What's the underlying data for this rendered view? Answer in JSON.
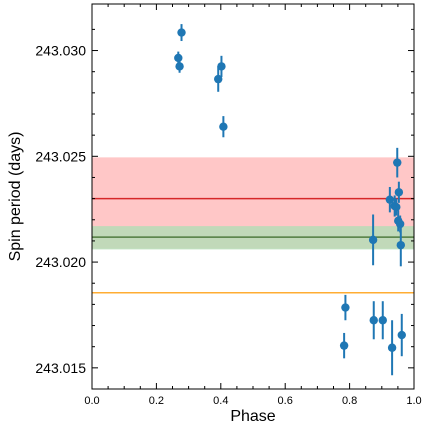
{
  "chart_data": {
    "type": "scatter",
    "title": "",
    "xlabel": "Phase",
    "ylabel": "Spin period (days)",
    "xlim": [
      0.0,
      1.0
    ],
    "ylim": [
      243.014,
      243.0322
    ],
    "grid": false,
    "x_ticks": [
      0.0,
      0.2,
      0.4,
      0.6,
      0.8,
      1.0
    ],
    "x_tick_labels": [
      "0.0",
      "0.2",
      "0.4",
      "0.6",
      "0.8",
      "1.0"
    ],
    "y_ticks": [
      243.015,
      243.02,
      243.025,
      243.03
    ],
    "y_tick_labels": [
      "243.015",
      "243.020",
      "243.025",
      "243.030"
    ],
    "bands": [
      {
        "ymin": 243.02065,
        "ymax": 243.02495,
        "color": "#ffbdbd"
      },
      {
        "ymin": 243.0206,
        "ymax": 243.0217,
        "color": "#b6dcb6"
      }
    ],
    "hlines": [
      {
        "y": 243.023,
        "color": "#d62728"
      },
      {
        "y": 243.02118,
        "color": "#4f7b3f"
      },
      {
        "y": 243.01855,
        "color": "#ffad33"
      }
    ],
    "marker_color": "#1f77b4",
    "series": [
      {
        "points": [
          {
            "x": 0.268,
            "y": 243.02965,
            "err": 0.0003
          },
          {
            "x": 0.272,
            "y": 243.02925,
            "err": 0.0003
          },
          {
            "x": 0.278,
            "y": 243.03085,
            "err": 0.0004
          },
          {
            "x": 0.392,
            "y": 243.02865,
            "err": 0.0006
          },
          {
            "x": 0.402,
            "y": 243.02925,
            "err": 0.0005
          },
          {
            "x": 0.408,
            "y": 243.0264,
            "err": 0.0005
          },
          {
            "x": 0.783,
            "y": 243.01605,
            "err": 0.0006
          },
          {
            "x": 0.787,
            "y": 243.01785,
            "err": 0.0006
          },
          {
            "x": 0.873,
            "y": 243.02105,
            "err": 0.0012
          },
          {
            "x": 0.875,
            "y": 243.01725,
            "err": 0.0009
          },
          {
            "x": 0.903,
            "y": 243.01725,
            "err": 0.0009
          },
          {
            "x": 0.925,
            "y": 243.02295,
            "err": 0.0006
          },
          {
            "x": 0.932,
            "y": 243.01595,
            "err": 0.0013
          },
          {
            "x": 0.94,
            "y": 243.02265,
            "err": 0.0005
          },
          {
            "x": 0.945,
            "y": 243.0226,
            "err": 0.0004
          },
          {
            "x": 0.948,
            "y": 243.0247,
            "err": 0.0007
          },
          {
            "x": 0.951,
            "y": 243.02195,
            "err": 0.0005
          },
          {
            "x": 0.953,
            "y": 243.0233,
            "err": 0.0005
          },
          {
            "x": 0.957,
            "y": 243.0218,
            "err": 0.0004
          },
          {
            "x": 0.959,
            "y": 243.0208,
            "err": 0.001
          },
          {
            "x": 0.962,
            "y": 243.01655,
            "err": 0.001
          }
        ]
      }
    ]
  }
}
